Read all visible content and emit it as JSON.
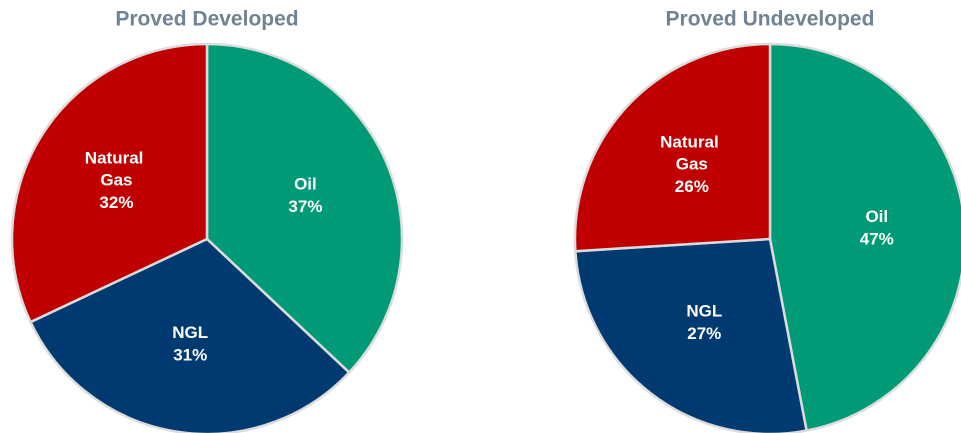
{
  "chart_data": [
    {
      "type": "pie",
      "title": "Proved Developed",
      "categories": [
        "Oil",
        "NGL",
        "Natural Gas"
      ],
      "values": [
        37,
        31,
        32
      ],
      "value_labels": [
        "37%",
        "31%",
        "32%"
      ],
      "colors": [
        "#009a76",
        "#003a70",
        "#c00000"
      ]
    },
    {
      "type": "pie",
      "title": "Proved Undeveloped",
      "categories": [
        "Oil",
        "NGL",
        "Natural Gas"
      ],
      "values": [
        47,
        27,
        26
      ],
      "value_labels": [
        "47%",
        "27%",
        "26%"
      ],
      "colors": [
        "#009a76",
        "#003a70",
        "#c00000"
      ]
    }
  ]
}
